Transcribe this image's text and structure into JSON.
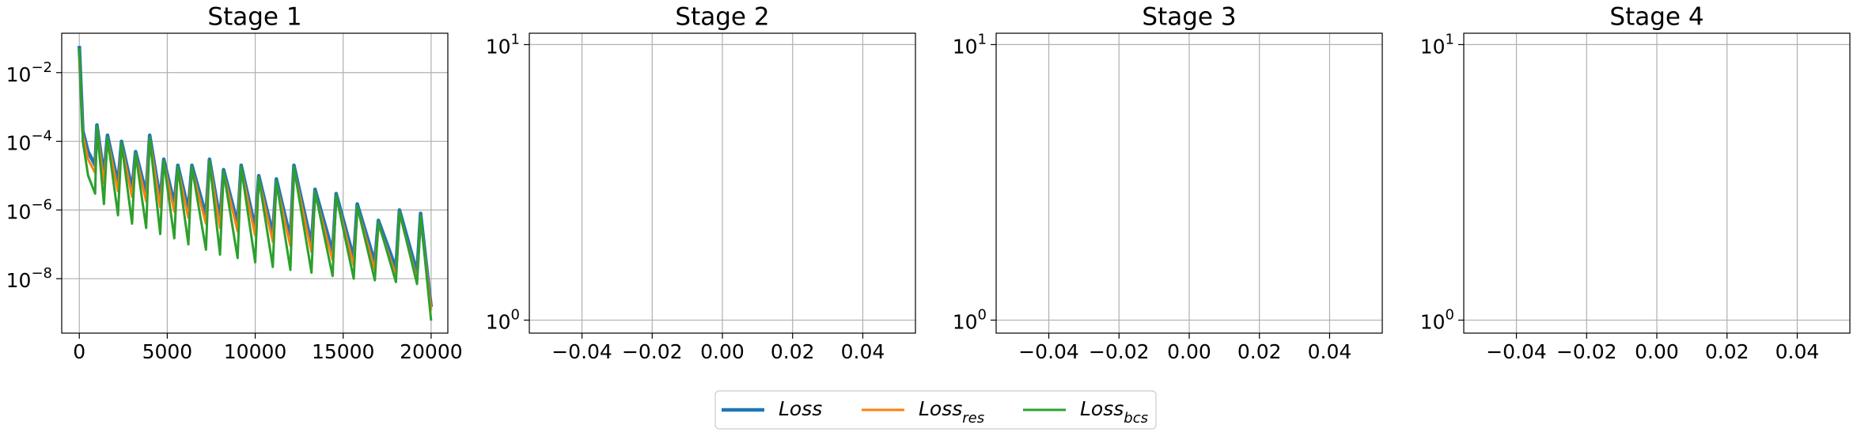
{
  "chart_data": [
    {
      "type": "line",
      "title": "Stage 1",
      "log_y": true,
      "grid": true,
      "legend": "lower center",
      "x": [
        0,
        200,
        500,
        900,
        1000,
        1400,
        1600,
        2200,
        2400,
        3000,
        3200,
        3800,
        4000,
        4600,
        4800,
        5400,
        5600,
        6200,
        6400,
        7200,
        7400,
        8000,
        8200,
        9000,
        9200,
        10000,
        10200,
        11000,
        11200,
        12000,
        12200,
        13200,
        13400,
        14400,
        14600,
        15600,
        15800,
        16800,
        17000,
        18000,
        18200,
        19200,
        19400,
        20000
      ],
      "series": [
        {
          "name": "Loss",
          "color": "#1f77b4",
          "values": [
            0.06,
            0.0002,
            5e-05,
            2e-05,
            0.0003,
            1e-05,
            0.00015,
            6e-06,
            0.0001,
            4e-06,
            5e-05,
            3e-06,
            0.00015,
            2e-06,
            3e-05,
            1.5e-06,
            2e-05,
            1e-06,
            2e-05,
            7e-07,
            3e-05,
            5e-07,
            1.5e-05,
            4e-07,
            2e-05,
            3e-07,
            1e-05,
            2e-07,
            8e-06,
            1.5e-07,
            2e-05,
            1e-07,
            4e-06,
            6e-08,
            3e-06,
            4e-08,
            1.5e-06,
            3e-08,
            5e-07,
            2e-08,
            1e-06,
            1.5e-08,
            8e-07,
            1.5e-09
          ]
        },
        {
          "name": "Loss",
          "subscript": "res",
          "color": "#ff7f0e",
          "values": [
            0.03,
            0.00015,
            3e-05,
            1.2e-05,
            0.00024,
            6e-06,
            0.00012,
            3.5e-06,
            8e-05,
            2.4e-06,
            4e-05,
            1.8e-06,
            0.00012,
            1.2e-06,
            2.4e-05,
            9e-07,
            1.6e-05,
            6e-07,
            1.6e-05,
            4e-07,
            2.4e-05,
            3e-07,
            1.2e-05,
            2.4e-07,
            1.6e-05,
            1.8e-07,
            8e-06,
            1.2e-07,
            6e-06,
            9e-08,
            1.6e-05,
            6e-08,
            3e-06,
            3.5e-08,
            2.4e-06,
            2.4e-08,
            1.2e-06,
            1.8e-08,
            4e-07,
            1.2e-08,
            8e-07,
            9e-09,
            6e-07,
            1.2e-09
          ]
        },
        {
          "name": "Loss",
          "subscript": "bcs",
          "color": "#2ca02c",
          "values": [
            0.05,
            0.0001,
            1e-05,
            3e-06,
            0.00027,
            1.5e-06,
            0.00013,
            7e-07,
            9e-05,
            4e-07,
            4.5e-05,
            3e-07,
            0.00013,
            2e-07,
            2.7e-05,
            1.5e-07,
            1.8e-05,
            1e-07,
            1.8e-05,
            7e-08,
            2.7e-05,
            5e-08,
            1.3e-05,
            4e-08,
            1.8e-05,
            3e-08,
            9e-06,
            2.2e-08,
            7e-06,
            1.8e-08,
            1.8e-05,
            1.5e-08,
            3.5e-06,
            1.2e-08,
            2.7e-06,
            1e-08,
            1.3e-06,
            9e-09,
            4.5e-07,
            8e-09,
            9e-07,
            7e-09,
            7e-07,
            6e-10
          ]
        }
      ],
      "xlim": [
        -1000,
        20950
      ],
      "xticks": [
        0,
        5000,
        10000,
        15000,
        20000
      ],
      "ylim": [
        2.6e-10,
        0.14
      ],
      "yticks": [
        {
          "value": 0.01,
          "label": "10",
          "sup": "−2"
        },
        {
          "value": 0.0001,
          "label": "10",
          "sup": "−4"
        },
        {
          "value": 1e-06,
          "label": "10",
          "sup": "−6"
        },
        {
          "value": 1e-08,
          "label": "10",
          "sup": "−8"
        }
      ]
    },
    {
      "type": "line",
      "title": "Stage 2",
      "log_y": true,
      "grid": true,
      "xlim": [
        -0.055,
        0.055
      ],
      "xticks": [
        {
          "value": -0.04,
          "label": "−0.04"
        },
        {
          "value": -0.02,
          "label": "−0.02"
        },
        {
          "value": 0,
          "label": "0.00"
        },
        {
          "value": 0.02,
          "label": "0.02"
        },
        {
          "value": 0.04,
          "label": "0.04"
        }
      ],
      "ylim": [
        0.897,
        11.0
      ],
      "yticks": [
        {
          "value": 1,
          "label": "10",
          "sup": "0"
        },
        {
          "value": 10,
          "label": "10",
          "sup": "1"
        }
      ]
    },
    {
      "type": "line",
      "title": "Stage 3",
      "log_y": true,
      "grid": true,
      "xlim": [
        -0.055,
        0.055
      ],
      "xticks": [
        {
          "value": -0.04,
          "label": "−0.04"
        },
        {
          "value": -0.02,
          "label": "−0.02"
        },
        {
          "value": 0,
          "label": "0.00"
        },
        {
          "value": 0.02,
          "label": "0.02"
        },
        {
          "value": 0.04,
          "label": "0.04"
        }
      ],
      "ylim": [
        0.897,
        11.0
      ],
      "yticks": [
        {
          "value": 1,
          "label": "10",
          "sup": "0"
        },
        {
          "value": 10,
          "label": "10",
          "sup": "1"
        }
      ]
    },
    {
      "type": "line",
      "title": "Stage 4",
      "log_y": true,
      "grid": true,
      "xlim": [
        -0.055,
        0.055
      ],
      "xticks": [
        {
          "value": -0.04,
          "label": "−0.04"
        },
        {
          "value": -0.02,
          "label": "−0.02"
        },
        {
          "value": 0,
          "label": "0.00"
        },
        {
          "value": 0.02,
          "label": "0.02"
        },
        {
          "value": 0.04,
          "label": "0.04"
        }
      ],
      "ylim": [
        0.897,
        11.0
      ],
      "yticks": [
        {
          "value": 1,
          "label": "10",
          "sup": "0"
        },
        {
          "value": 10,
          "label": "10",
          "sup": "1"
        }
      ]
    }
  ]
}
